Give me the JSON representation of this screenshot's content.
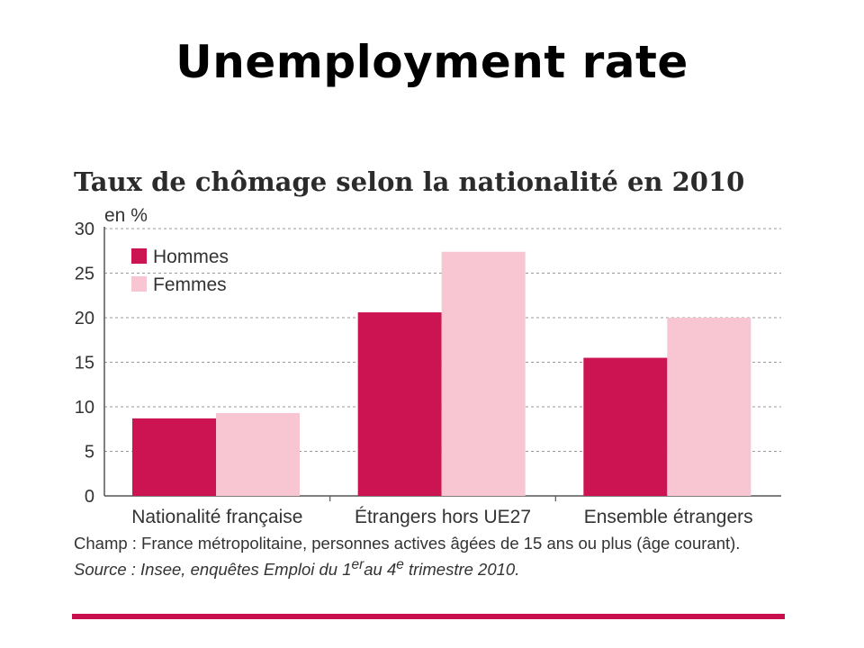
{
  "slide": {
    "title": "Unemployment rate"
  },
  "chart_data": {
    "type": "bar",
    "title": "Taux de chômage selon la nationalité en 2010",
    "ylabel": "en %",
    "xlabel": "",
    "ylim": [
      0,
      30
    ],
    "yticks": [
      0,
      5,
      10,
      15,
      20,
      25,
      30
    ],
    "grid": true,
    "legend_position": "top-left",
    "categories": [
      "Nationalité française",
      "Étrangers hors UE27",
      "Ensemble  étrangers"
    ],
    "series": [
      {
        "name": "Hommes",
        "color": "#cc1452",
        "values": [
          8.7,
          20.6,
          15.5
        ]
      },
      {
        "name": "Femmes",
        "color": "#f8c6d2",
        "values": [
          9.3,
          27.4,
          20.0
        ]
      }
    ]
  },
  "notes": {
    "champ": "Champ : France métropolitaine, personnes actives âgées de 15 ans ou plus (âge courant).",
    "source_prefix": "Source : Insee, enquêtes Emploi du 1",
    "source_sup1": "er",
    "source_mid": "au 4",
    "source_sup2": "e",
    "source_suffix": " trimestre 2010."
  }
}
